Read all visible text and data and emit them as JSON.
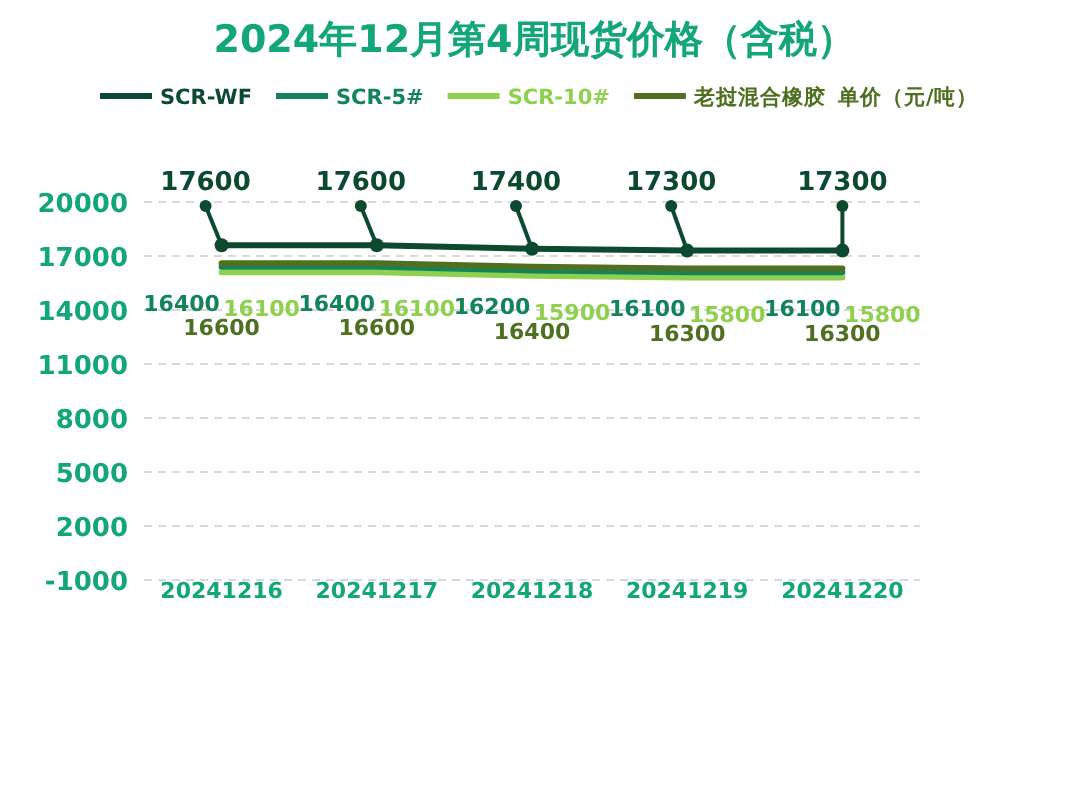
{
  "chart_data": {
    "type": "line",
    "title": "2024年12月第4周现货价格（含税）",
    "categories": [
      "20241216",
      "20241217",
      "20241218",
      "20241219",
      "20241220"
    ],
    "series": [
      {
        "name": "SCR-WF",
        "color": "#0b4a2e",
        "marker": "circle",
        "values": [
          17600,
          17600,
          17400,
          17300,
          17300
        ]
      },
      {
        "name": "SCR-5#",
        "color": "#13845a",
        "values": [
          16400,
          16400,
          16200,
          16100,
          16100
        ]
      },
      {
        "name": "SCR-10#",
        "color": "#8fd14f",
        "values": [
          16100,
          16100,
          15900,
          15800,
          15800
        ]
      },
      {
        "name": "老挝混合橡胶",
        "color": "#4f7020",
        "values": [
          16600,
          16600,
          16400,
          16300,
          16300
        ]
      }
    ],
    "annotations": [
      "单价（元/吨）"
    ],
    "ylim": [
      -1000,
      20000
    ],
    "yticks": [
      -1000,
      2000,
      5000,
      8000,
      11000,
      14000,
      17000,
      20000
    ],
    "grid": "y",
    "legend": "top",
    "data_labels": true
  }
}
